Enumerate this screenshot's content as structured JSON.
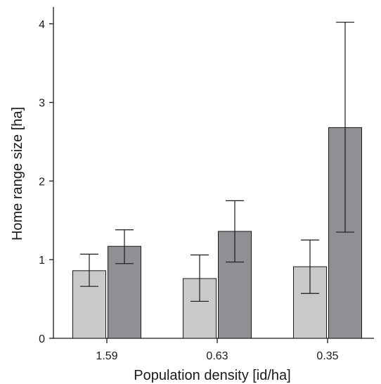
{
  "chart_data": {
    "type": "bar",
    "title": "",
    "xlabel": "Population density [id/ha]",
    "ylabel": "Home range size [ha]",
    "categories": [
      "1.59",
      "0.63",
      "0.35"
    ],
    "ylim": [
      0,
      4.2
    ],
    "yticks": [
      "0",
      "1",
      "2",
      "3",
      "4"
    ],
    "grid": false,
    "legend": "none",
    "series": [
      {
        "color": "#c8c9cb",
        "values": [
          0.86,
          0.76,
          0.91
        ],
        "error_low": [
          0.66,
          0.47,
          0.57
        ],
        "error_high": [
          1.07,
          1.06,
          1.25
        ]
      },
      {
        "color": "#8f9094",
        "values": [
          1.17,
          1.36,
          2.68
        ],
        "error_low": [
          0.95,
          0.97,
          1.35
        ],
        "error_high": [
          1.38,
          1.75,
          4.02
        ]
      }
    ]
  }
}
